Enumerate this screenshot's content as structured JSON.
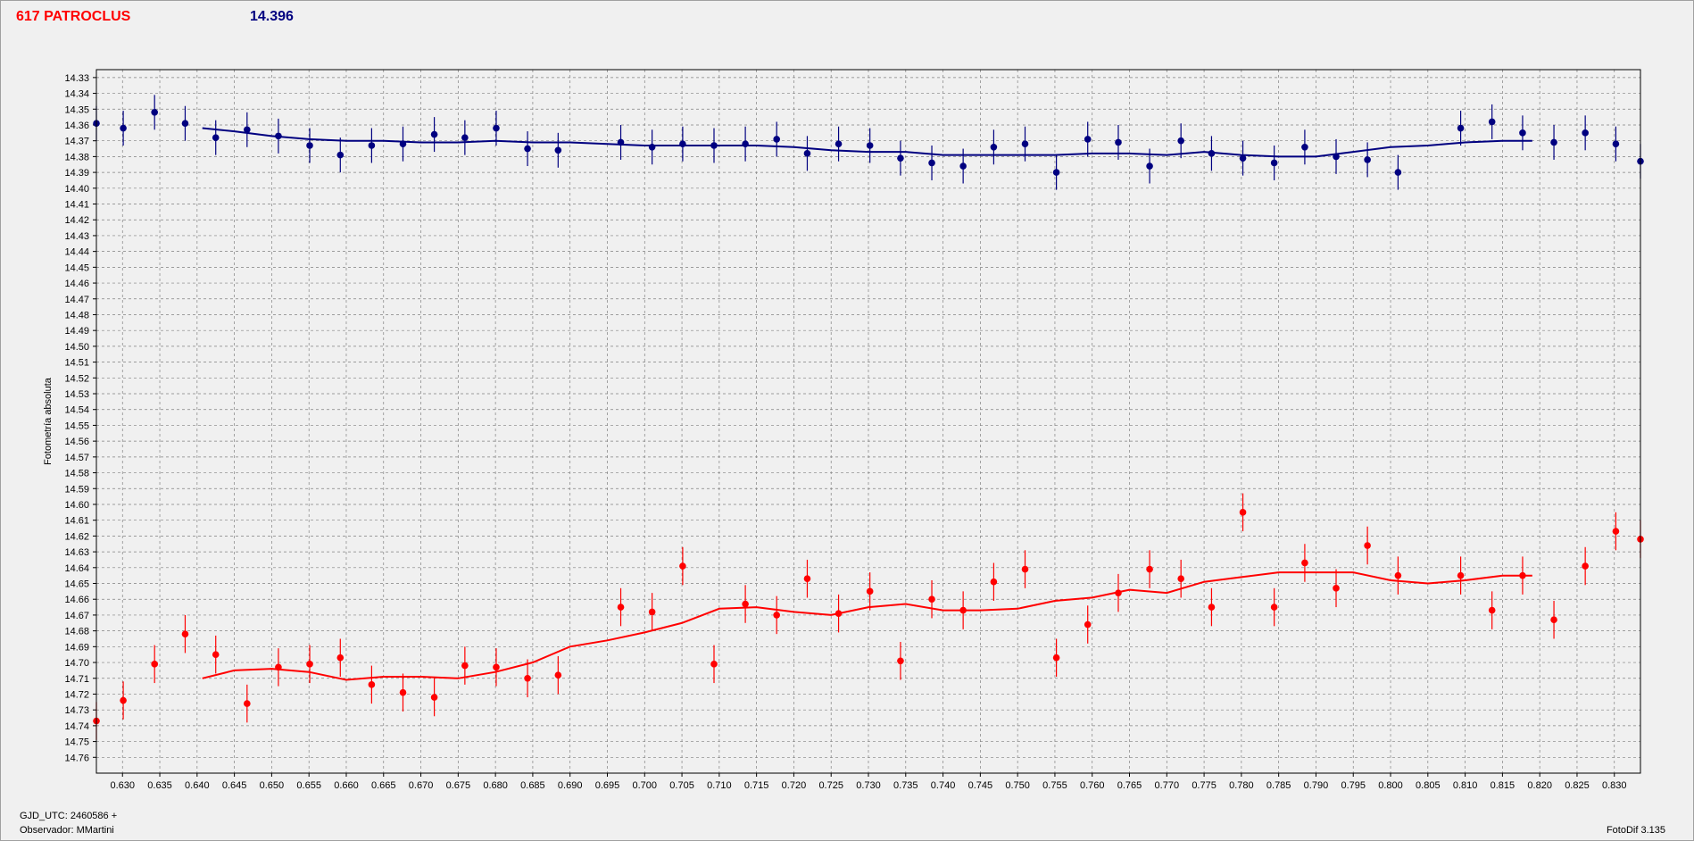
{
  "header": {
    "object": "617 PATROCLUS",
    "reference_mag": "14.396"
  },
  "footer": {
    "gjd": "GJD_UTC: 2460586 +",
    "observer": "Observador: MMartini",
    "software": "FotoDif 3.135"
  },
  "colors": {
    "series_blue": "#000080",
    "series_red": "#ff0000",
    "plot_bg": "#f0f0f0",
    "grid": "#808080"
  },
  "chart_data": {
    "type": "scatter",
    "title": "617 PATROCLUS",
    "ylabel": "Fotometría absoluta",
    "xlabel": "GJD_UTC: 2460586 +",
    "xlim": [
      0.6265,
      0.8335
    ],
    "ylim": [
      14.325,
      14.77
    ],
    "y_inverted": true,
    "grid": true,
    "x_ticks": [
      "0.630",
      "0.635",
      "0.640",
      "0.645",
      "0.650",
      "0.655",
      "0.660",
      "0.665",
      "0.670",
      "0.675",
      "0.680",
      "0.685",
      "0.690",
      "0.695",
      "0.700",
      "0.705",
      "0.710",
      "0.715",
      "0.720",
      "0.725",
      "0.730",
      "0.735",
      "0.740",
      "0.745",
      "0.750",
      "0.755",
      "0.760",
      "0.765",
      "0.770",
      "0.775",
      "0.780",
      "0.785",
      "0.790",
      "0.795",
      "0.800",
      "0.805",
      "0.810",
      "0.815",
      "0.820",
      "0.825",
      "0.830"
    ],
    "y_ticks": [
      "14.33",
      "14.34",
      "14.35",
      "14.36",
      "14.37",
      "14.38",
      "14.39",
      "14.40",
      "14.41",
      "14.42",
      "14.43",
      "14.44",
      "14.45",
      "14.46",
      "14.47",
      "14.48",
      "14.49",
      "14.50",
      "14.51",
      "14.52",
      "14.53",
      "14.54",
      "14.55",
      "14.56",
      "14.57",
      "14.58",
      "14.59",
      "14.60",
      "14.61",
      "14.62",
      "14.63",
      "14.64",
      "14.65",
      "14.66",
      "14.67",
      "14.68",
      "14.69",
      "14.70",
      "14.71",
      "14.72",
      "14.73",
      "14.74",
      "14.75",
      "14.76"
    ],
    "series": [
      {
        "color": "#000080",
        "error": 0.011,
        "points": [
          [
            0.6265,
            14.359
          ],
          [
            0.6301,
            14.362
          ],
          [
            0.6343,
            14.352
          ],
          [
            0.6384,
            14.359
          ],
          [
            0.6425,
            14.368
          ],
          [
            0.6467,
            14.363
          ],
          [
            0.6509,
            14.367
          ],
          [
            0.6551,
            14.373
          ],
          [
            0.6592,
            14.379
          ],
          [
            0.6634,
            14.373
          ],
          [
            0.6676,
            14.372
          ],
          [
            0.6718,
            14.366
          ],
          [
            0.6759,
            14.368
          ],
          [
            0.6801,
            14.362
          ],
          [
            0.6843,
            14.375
          ],
          [
            0.6884,
            14.376
          ],
          [
            0.6968,
            14.371
          ],
          [
            0.701,
            14.374
          ],
          [
            0.7051,
            14.372
          ],
          [
            0.7093,
            14.373
          ],
          [
            0.7135,
            14.372
          ],
          [
            0.7177,
            14.369
          ],
          [
            0.7218,
            14.378
          ],
          [
            0.726,
            14.372
          ],
          [
            0.7302,
            14.373
          ],
          [
            0.7343,
            14.381
          ],
          [
            0.7385,
            14.384
          ],
          [
            0.7427,
            14.386
          ],
          [
            0.7468,
            14.374
          ],
          [
            0.751,
            14.372
          ],
          [
            0.7552,
            14.39
          ],
          [
            0.7594,
            14.369
          ],
          [
            0.7635,
            14.371
          ],
          [
            0.7677,
            14.386
          ],
          [
            0.7719,
            14.37
          ],
          [
            0.776,
            14.378
          ],
          [
            0.7802,
            14.381
          ],
          [
            0.7844,
            14.384
          ],
          [
            0.7885,
            14.374
          ],
          [
            0.7927,
            14.38
          ],
          [
            0.7969,
            14.382
          ],
          [
            0.801,
            14.39
          ],
          [
            0.8094,
            14.362
          ],
          [
            0.8136,
            14.358
          ],
          [
            0.8177,
            14.365
          ],
          [
            0.8219,
            14.371
          ],
          [
            0.8261,
            14.365
          ],
          [
            0.8302,
            14.372
          ],
          [
            0.8335,
            14.383
          ]
        ],
        "smooth": [
          [
            0.6407,
            14.362
          ],
          [
            0.645,
            14.364
          ],
          [
            0.65,
            14.367
          ],
          [
            0.655,
            14.369
          ],
          [
            0.66,
            14.37
          ],
          [
            0.665,
            14.37
          ],
          [
            0.67,
            14.371
          ],
          [
            0.675,
            14.371
          ],
          [
            0.68,
            14.37
          ],
          [
            0.685,
            14.371
          ],
          [
            0.69,
            14.371
          ],
          [
            0.695,
            14.372
          ],
          [
            0.7,
            14.373
          ],
          [
            0.705,
            14.373
          ],
          [
            0.71,
            14.373
          ],
          [
            0.715,
            14.373
          ],
          [
            0.72,
            14.374
          ],
          [
            0.725,
            14.376
          ],
          [
            0.73,
            14.377
          ],
          [
            0.735,
            14.377
          ],
          [
            0.74,
            14.379
          ],
          [
            0.745,
            14.379
          ],
          [
            0.75,
            14.379
          ],
          [
            0.755,
            14.379
          ],
          [
            0.76,
            14.378
          ],
          [
            0.765,
            14.378
          ],
          [
            0.77,
            14.379
          ],
          [
            0.775,
            14.377
          ],
          [
            0.78,
            14.379
          ],
          [
            0.785,
            14.38
          ],
          [
            0.79,
            14.38
          ],
          [
            0.795,
            14.377
          ],
          [
            0.8,
            14.374
          ],
          [
            0.805,
            14.373
          ],
          [
            0.81,
            14.371
          ],
          [
            0.815,
            14.37
          ],
          [
            0.819,
            14.37
          ]
        ]
      },
      {
        "color": "#ff0000",
        "error": 0.012,
        "points": [
          [
            0.6265,
            14.737
          ],
          [
            0.6301,
            14.724
          ],
          [
            0.6343,
            14.701
          ],
          [
            0.6384,
            14.682
          ],
          [
            0.6425,
            14.695
          ],
          [
            0.6467,
            14.726
          ],
          [
            0.6509,
            14.703
          ],
          [
            0.6551,
            14.701
          ],
          [
            0.6592,
            14.697
          ],
          [
            0.6634,
            14.714
          ],
          [
            0.6676,
            14.719
          ],
          [
            0.6718,
            14.722
          ],
          [
            0.6759,
            14.702
          ],
          [
            0.6801,
            14.703
          ],
          [
            0.6843,
            14.71
          ],
          [
            0.6884,
            14.708
          ],
          [
            0.6968,
            14.665
          ],
          [
            0.701,
            14.668
          ],
          [
            0.7051,
            14.639
          ],
          [
            0.7093,
            14.701
          ],
          [
            0.7135,
            14.663
          ],
          [
            0.7177,
            14.67
          ],
          [
            0.7218,
            14.647
          ],
          [
            0.726,
            14.669
          ],
          [
            0.7302,
            14.655
          ],
          [
            0.7343,
            14.699
          ],
          [
            0.7385,
            14.66
          ],
          [
            0.7427,
            14.667
          ],
          [
            0.7468,
            14.649
          ],
          [
            0.751,
            14.641
          ],
          [
            0.7552,
            14.697
          ],
          [
            0.7594,
            14.676
          ],
          [
            0.7635,
            14.656
          ],
          [
            0.7677,
            14.641
          ],
          [
            0.7719,
            14.647
          ],
          [
            0.776,
            14.665
          ],
          [
            0.7802,
            14.605
          ],
          [
            0.7844,
            14.665
          ],
          [
            0.7885,
            14.637
          ],
          [
            0.7927,
            14.653
          ],
          [
            0.7969,
            14.626
          ],
          [
            0.801,
            14.645
          ],
          [
            0.8094,
            14.645
          ],
          [
            0.8136,
            14.667
          ],
          [
            0.8177,
            14.645
          ],
          [
            0.8219,
            14.673
          ],
          [
            0.8261,
            14.639
          ],
          [
            0.8302,
            14.617
          ],
          [
            0.8335,
            14.622
          ]
        ],
        "smooth": [
          [
            0.6407,
            14.71
          ],
          [
            0.645,
            14.705
          ],
          [
            0.65,
            14.704
          ],
          [
            0.655,
            14.706
          ],
          [
            0.66,
            14.711
          ],
          [
            0.665,
            14.709
          ],
          [
            0.67,
            14.709
          ],
          [
            0.675,
            14.71
          ],
          [
            0.68,
            14.706
          ],
          [
            0.685,
            14.7
          ],
          [
            0.69,
            14.69
          ],
          [
            0.695,
            14.686
          ],
          [
            0.7,
            14.681
          ],
          [
            0.705,
            14.675
          ],
          [
            0.71,
            14.666
          ],
          [
            0.715,
            14.665
          ],
          [
            0.72,
            14.668
          ],
          [
            0.725,
            14.67
          ],
          [
            0.73,
            14.665
          ],
          [
            0.735,
            14.663
          ],
          [
            0.74,
            14.667
          ],
          [
            0.745,
            14.667
          ],
          [
            0.75,
            14.666
          ],
          [
            0.755,
            14.661
          ],
          [
            0.76,
            14.659
          ],
          [
            0.765,
            14.654
          ],
          [
            0.77,
            14.656
          ],
          [
            0.775,
            14.649
          ],
          [
            0.78,
            14.646
          ],
          [
            0.785,
            14.643
          ],
          [
            0.79,
            14.643
          ],
          [
            0.795,
            14.643
          ],
          [
            0.8,
            14.648
          ],
          [
            0.805,
            14.65
          ],
          [
            0.81,
            14.648
          ],
          [
            0.815,
            14.645
          ],
          [
            0.819,
            14.645
          ]
        ]
      }
    ]
  }
}
